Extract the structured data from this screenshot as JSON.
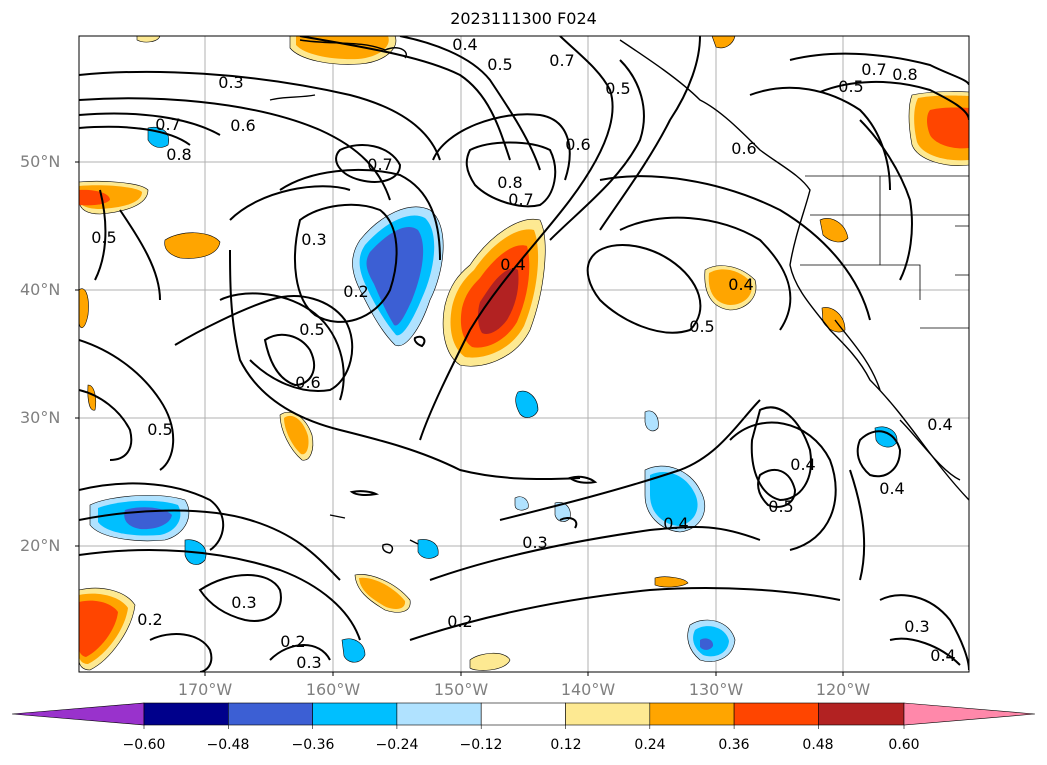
{
  "title": "2023111300 F024",
  "map": {
    "lat_labels": [
      "50°N",
      "40°N",
      "30°N",
      "20°N"
    ],
    "lon_labels": [
      "170°W",
      "160°W",
      "150°W",
      "140°W",
      "130°W",
      "120°W"
    ],
    "contour_labels": [
      "0.3",
      "0.4",
      "0.5",
      "0.7",
      "0.5",
      "0.6",
      "0.7",
      "0.6",
      "0.8",
      "0.8",
      "0.7",
      "0.7",
      "0.6",
      "0.8",
      "0.5",
      "0.7",
      "0.3",
      "0.2",
      "0.4",
      "0.4",
      "0.5",
      "0.5",
      "0.6",
      "0.5",
      "0.5",
      "0.4",
      "0.5",
      "0.4",
      "0.4",
      "0.3",
      "0.2",
      "0.3",
      "0.2",
      "0.3",
      "0.3",
      "0.4",
      "0.4",
      "0.2"
    ]
  },
  "colorbar": {
    "ticks": [
      "−0.60",
      "−0.48",
      "−0.36",
      "−0.24",
      "−0.12",
      "0.12",
      "0.24",
      "0.36",
      "0.48",
      "0.60"
    ],
    "colors": [
      "#9932cc",
      "#00008b",
      "#3c5fd4",
      "#00bfff",
      "#b0e2ff",
      "#ffffff",
      "#fde992",
      "#ffa500",
      "#ff4500",
      "#b22222",
      "#ff88aa"
    ]
  },
  "colors": {
    "lightblue": "#b0e2ff",
    "cyan": "#00bfff",
    "blue": "#3c5fd4",
    "navy": "#00008b",
    "yellow": "#fde992",
    "orange": "#ffa500",
    "redorange": "#ff4500",
    "darkred": "#b22222"
  }
}
